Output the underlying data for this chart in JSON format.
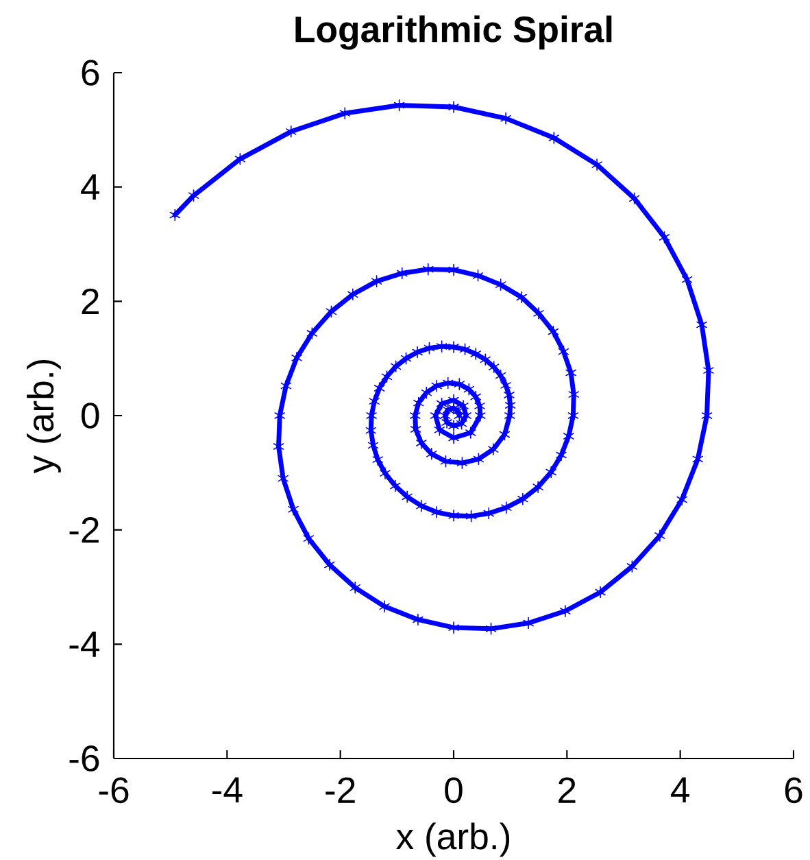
{
  "chart_data": {
    "type": "line",
    "title": "Logarithmic Spiral",
    "xlabel": "x (arb.)",
    "ylabel": "y (arb.)",
    "x": [
      -4.92,
      -4.59,
      -3.77,
      -2.87,
      -1.92,
      -0.96,
      0,
      0.92,
      1.77,
      2.53,
      3.19,
      3.72,
      4.12,
      4.38,
      4.5,
      4.47,
      4.31,
      4.03,
      3.64,
      3.15,
      2.59,
      1.97,
      1.32,
      0.66,
      0,
      -0.63,
      -1.22,
      -1.74,
      -2.19,
      -2.56,
      -2.83,
      -3.01,
      -3.09,
      -3.07,
      -2.96,
      -2.77,
      -2.5,
      -2.16,
      -1.78,
      -1.36,
      -0.91,
      -0.45,
      0,
      0.43,
      0.83,
      1.2,
      1.5,
      1.76,
      1.94,
      2.07,
      2.12,
      2.11,
      2.03,
      1.9,
      1.72,
      1.49,
      1.22,
      0.93,
      0.62,
      0.31,
      0,
      -0.3,
      -0.57,
      -0.82,
      -1.03,
      -1.21,
      -1.34,
      -1.42,
      -1.46,
      -1.45,
      -1.4,
      -1.31,
      -1.18,
      -1.02,
      -0.84,
      -0.64,
      -0.43,
      -0.21,
      0,
      0.2,
      0.39,
      0.56,
      0.71,
      0.83,
      0.92,
      0.98,
      1.0,
      0.99,
      0.9,
      0.7,
      0.44,
      0.15,
      -0.14,
      -0.39,
      -0.57,
      -0.67,
      -0.68,
      -0.62,
      -0.48,
      -0.3,
      -0.1,
      0.1,
      0.27,
      0.39,
      0.46,
      0.47,
      0.3,
      0,
      -0.25,
      -0.32,
      -0.21,
      0,
      0.17,
      0.22,
      0.14,
      0,
      -0.12,
      -0.15,
      -0.1,
      0,
      0.08,
      0.1
    ],
    "values": [
      3.51,
      3.85,
      4.49,
      4.97,
      5.29,
      5.43,
      5.4,
      5.2,
      4.86,
      4.39,
      3.8,
      3.12,
      2.38,
      1.59,
      0.79,
      0,
      -0.76,
      -1.47,
      -2.1,
      -2.64,
      -3.09,
      -3.42,
      -3.63,
      -3.73,
      -3.71,
      -3.57,
      -3.34,
      -3.01,
      -2.61,
      -2.15,
      -1.64,
      -1.1,
      -0.54,
      0,
      0.52,
      1.01,
      1.44,
      1.82,
      2.12,
      2.35,
      2.49,
      2.56,
      2.55,
      2.45,
      2.29,
      2.07,
      1.79,
      1.47,
      1.12,
      0.75,
      0.37,
      0,
      -0.36,
      -0.69,
      -0.99,
      -1.25,
      -1.46,
      -1.61,
      -1.71,
      -1.76,
      -1.75,
      -1.69,
      -1.58,
      -1.42,
      -1.23,
      -1.01,
      -0.77,
      -0.52,
      -0.26,
      0,
      0.25,
      0.48,
      0.68,
      0.86,
      1.0,
      1.11,
      1.18,
      1.21,
      1.2,
      1.16,
      1.08,
      0.98,
      0.85,
      0.7,
      0.53,
      0.36,
      0.18,
      0,
      -0.33,
      -0.59,
      -0.76,
      -0.83,
      -0.8,
      -0.67,
      -0.48,
      -0.24,
      0,
      0.22,
      0.4,
      0.52,
      0.57,
      0.55,
      0.46,
      0.33,
      0.17,
      0,
      -0.3,
      -0.39,
      -0.25,
      0,
      0.21,
      0.27,
      0.17,
      0,
      -0.14,
      -0.18,
      -0.12,
      0,
      0.1,
      0.13,
      0.08,
      0
    ],
    "color": "#0000ff",
    "marker": "cross",
    "line_style": "solid",
    "xlim": [
      -6,
      6
    ],
    "ylim": [
      -6,
      6
    ],
    "xticks": [
      -6,
      -4,
      -2,
      0,
      2,
      4,
      6
    ],
    "yticks": [
      -6,
      -4,
      -2,
      0,
      2,
      4,
      6
    ]
  }
}
